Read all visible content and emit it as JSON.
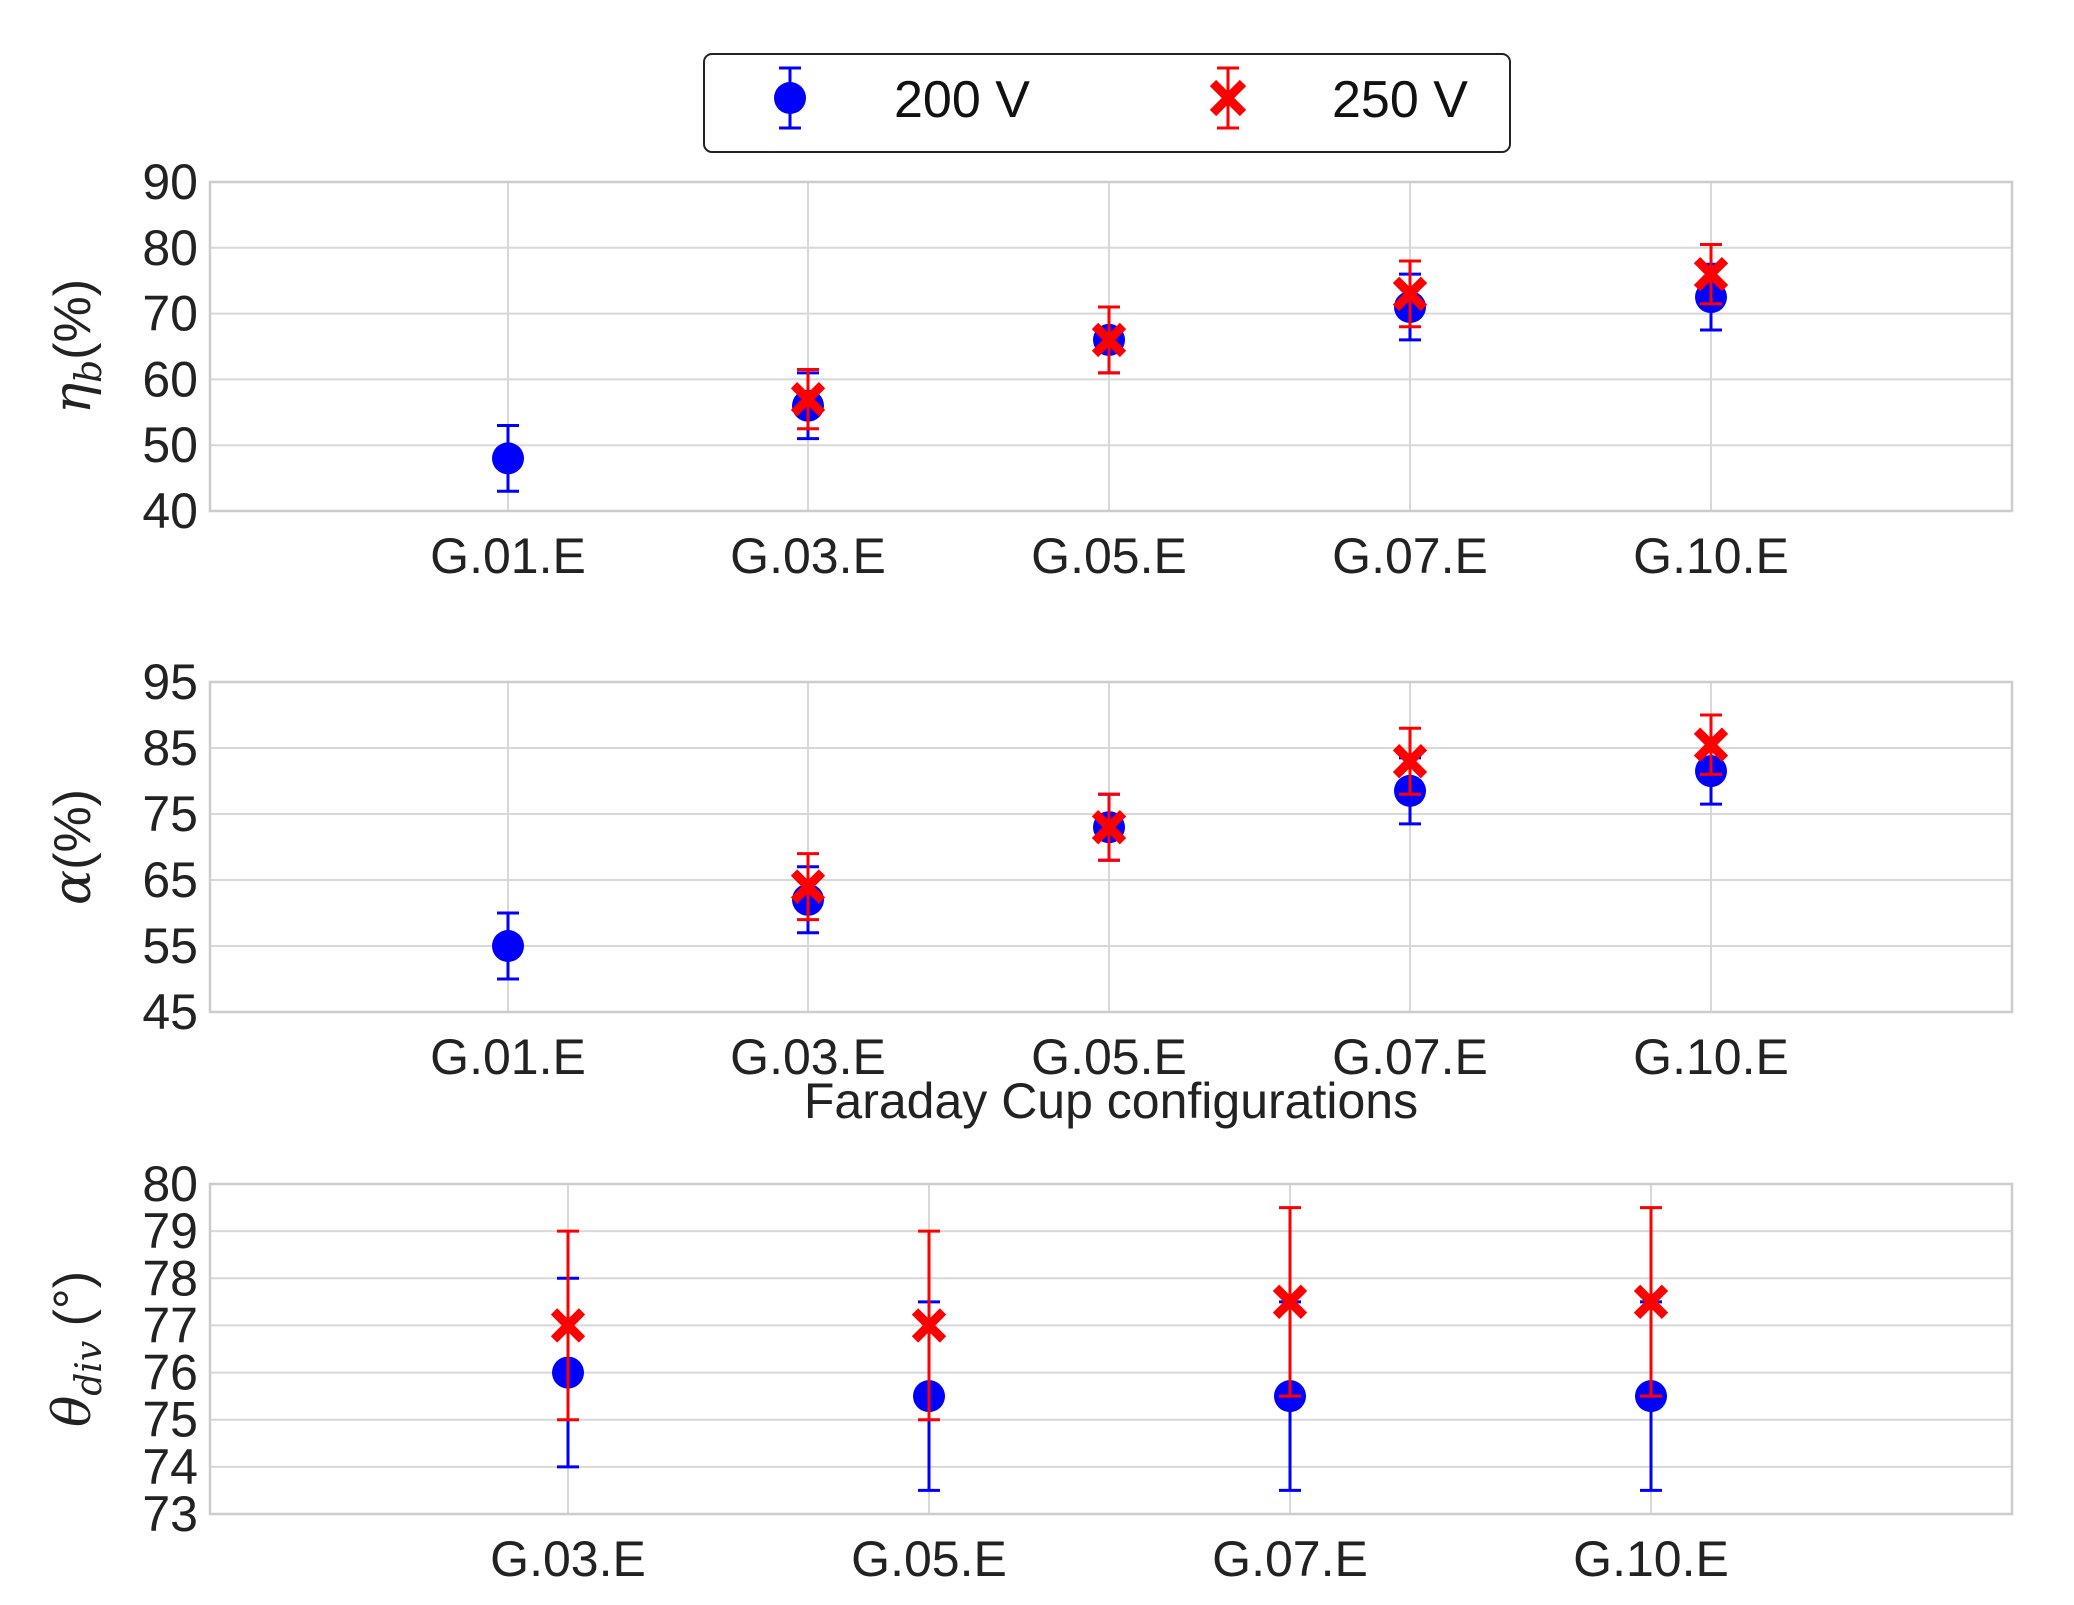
{
  "legend": {
    "entries": [
      {
        "label": "200 V",
        "color": "#0000ff",
        "marker": "circle"
      },
      {
        "label": "250 V",
        "color": "#ff0000",
        "marker": "x"
      }
    ]
  },
  "chart_data": [
    {
      "type": "scatter",
      "ylabel_symbol": "η",
      "ylabel_subscript": "b",
      "ylabel_suffix": "(%)",
      "xlabel": "",
      "categories": [
        "G.01.E",
        "G.03.E",
        "G.05.E",
        "G.07.E",
        "G.10.E"
      ],
      "ylim": [
        40,
        90
      ],
      "yticks": [
        40,
        50,
        60,
        70,
        80,
        90
      ],
      "grid": true,
      "series": [
        {
          "name": "200 V",
          "color": "#0000ff",
          "marker": "circle",
          "x": [
            "G.01.E",
            "G.03.E",
            "G.05.E",
            "G.07.E",
            "G.10.E"
          ],
          "values": [
            48,
            56,
            66,
            71,
            72.5
          ],
          "errors": [
            5,
            5,
            5,
            5,
            5
          ]
        },
        {
          "name": "250 V",
          "color": "#ff0000",
          "marker": "x",
          "x": [
            "G.03.E",
            "G.05.E",
            "G.07.E",
            "G.10.E"
          ],
          "values": [
            57,
            66,
            73,
            76
          ],
          "errors": [
            4.5,
            5,
            5,
            4.5
          ]
        }
      ]
    },
    {
      "type": "scatter",
      "ylabel_symbol": "α",
      "ylabel_subscript": "",
      "ylabel_suffix": "(%)",
      "xlabel": "Faraday Cup configurations",
      "categories": [
        "G.01.E",
        "G.03.E",
        "G.05.E",
        "G.07.E",
        "G.10.E"
      ],
      "ylim": [
        45,
        95
      ],
      "yticks": [
        45,
        55,
        65,
        75,
        85,
        95
      ],
      "grid": true,
      "series": [
        {
          "name": "200 V",
          "color": "#0000ff",
          "marker": "circle",
          "x": [
            "G.01.E",
            "G.03.E",
            "G.05.E",
            "G.07.E",
            "G.10.E"
          ],
          "values": [
            55,
            62,
            73,
            78.5,
            81.5
          ],
          "errors": [
            5,
            5,
            5,
            5,
            5
          ]
        },
        {
          "name": "250 V",
          "color": "#ff0000",
          "marker": "x",
          "x": [
            "G.03.E",
            "G.05.E",
            "G.07.E",
            "G.10.E"
          ],
          "values": [
            64,
            73,
            83,
            85.5
          ],
          "errors": [
            5,
            5,
            5,
            4.5
          ]
        }
      ]
    },
    {
      "type": "scatter",
      "ylabel_symbol": "θ",
      "ylabel_subscript": "div",
      "ylabel_suffix": " (°)",
      "xlabel": "",
      "categories": [
        "G.03.E",
        "G.05.E",
        "G.07.E",
        "G.10.E"
      ],
      "ylim": [
        73,
        80
      ],
      "yticks": [
        73,
        74,
        75,
        76,
        77,
        78,
        79,
        80
      ],
      "grid": true,
      "series": [
        {
          "name": "200 V",
          "color": "#0000ff",
          "marker": "circle",
          "x": [
            "G.03.E",
            "G.05.E",
            "G.07.E",
            "G.10.E"
          ],
          "values": [
            76,
            75.5,
            75.5,
            75.5
          ],
          "errors": [
            2,
            2,
            2,
            2
          ]
        },
        {
          "name": "250 V",
          "color": "#ff0000",
          "marker": "x",
          "x": [
            "G.03.E",
            "G.05.E",
            "G.07.E",
            "G.10.E"
          ],
          "values": [
            77,
            77,
            77.5,
            77.5
          ],
          "errors": [
            2,
            2,
            2,
            2
          ]
        }
      ]
    }
  ]
}
